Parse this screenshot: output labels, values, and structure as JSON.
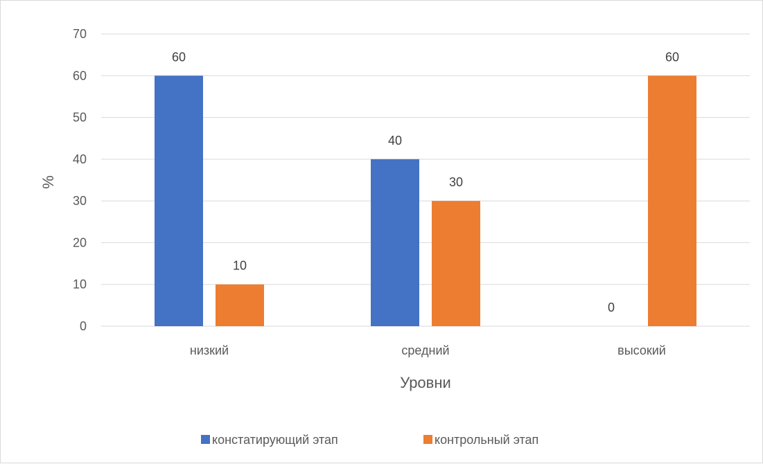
{
  "chart_data": {
    "type": "bar",
    "categories": [
      "низкий",
      "средний",
      "высокий"
    ],
    "series": [
      {
        "name": "констатирующий этап",
        "values": [
          60,
          40,
          0
        ],
        "color": "#4472C4"
      },
      {
        "name": "контрольный этап",
        "values": [
          10,
          30,
          60
        ],
        "color": "#ED7D31"
      }
    ],
    "title": "",
    "xlabel": "Уровни",
    "ylabel": "%",
    "ylim": [
      0,
      70
    ],
    "yticks": [
      "0",
      "10",
      "20",
      "30",
      "40",
      "50",
      "60",
      "70"
    ],
    "grid": true,
    "legend_position": "bottom",
    "data_labels": true
  }
}
